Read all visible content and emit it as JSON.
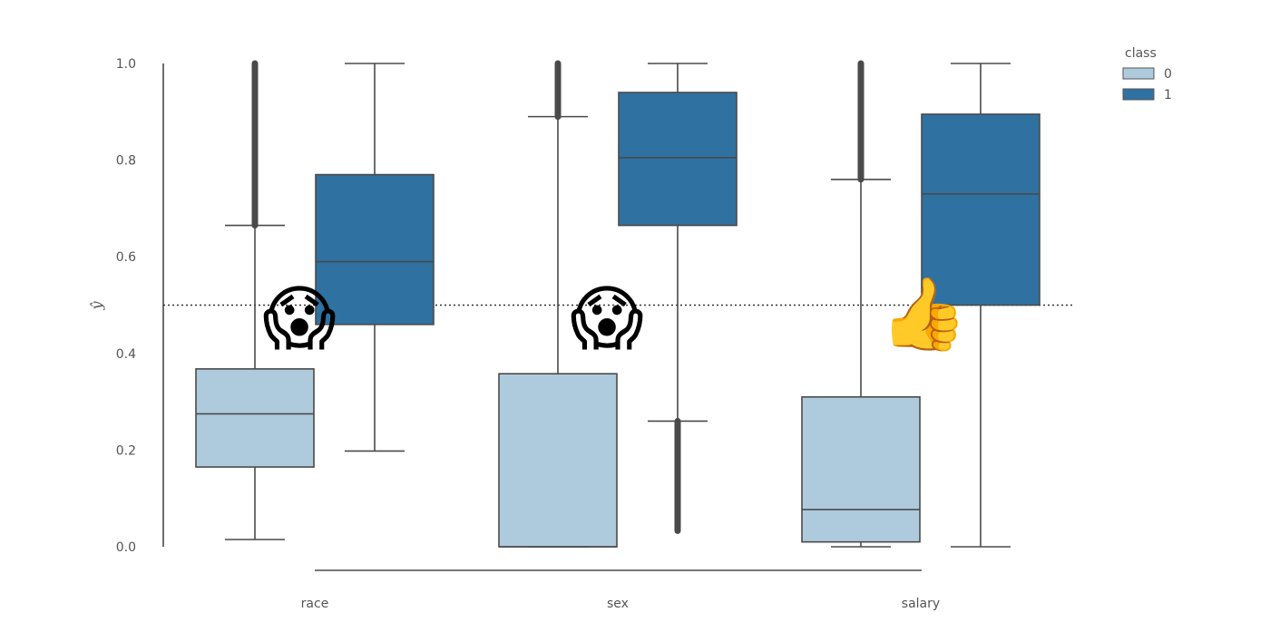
{
  "chart_data": {
    "type": "box",
    "categories": [
      "race",
      "sex",
      "salary"
    ],
    "ylabel": "ŷ",
    "ylim": [
      0,
      1
    ],
    "yticks": [
      0.0,
      0.2,
      0.4,
      0.6,
      0.8,
      1.0
    ],
    "ytick_labels": [
      "0.0",
      "0.2",
      "0.4",
      "0.6",
      "0.8",
      "1.0"
    ],
    "threshold": 0.5,
    "grid": false,
    "legend": {
      "title": "class",
      "placement": "top-right"
    },
    "series": [
      {
        "name": "0",
        "color": "#aecbdd",
        "boxes": [
          {
            "whisker_low": 0.015,
            "q1": 0.165,
            "median": 0.275,
            "q3": 0.368,
            "whisker_high": 0.665,
            "outlier_low": null,
            "outlier_high": 1.0
          },
          {
            "whisker_low": 0.0,
            "q1": 0.0,
            "median": 0.0,
            "q3": 0.358,
            "whisker_high": 0.89,
            "outlier_low": null,
            "outlier_high": 1.0
          },
          {
            "whisker_low": 0.0,
            "q1": 0.01,
            "median": 0.077,
            "q3": 0.31,
            "whisker_high": 0.76,
            "outlier_low": null,
            "outlier_high": 1.0
          }
        ]
      },
      {
        "name": "1",
        "color": "#2f71a1",
        "boxes": [
          {
            "whisker_low": 0.198,
            "q1": 0.46,
            "median": 0.59,
            "q3": 0.77,
            "whisker_high": 1.0,
            "outlier_low": null,
            "outlier_high": null
          },
          {
            "whisker_low": 0.26,
            "q1": 0.665,
            "median": 0.805,
            "q3": 0.94,
            "whisker_high": 1.0,
            "outlier_low": 0.033,
            "outlier_high": null
          },
          {
            "whisker_low": 0.0,
            "q1": 0.5,
            "median": 0.73,
            "q3": 0.895,
            "whisker_high": 1.0,
            "outlier_low": null,
            "outlier_high": null
          }
        ]
      }
    ]
  },
  "annotations": [
    {
      "name": "scream-emoji",
      "glyph": "😱",
      "category": "race"
    },
    {
      "name": "scream-emoji",
      "glyph": "😱",
      "category": "sex"
    },
    {
      "name": "thumbs-up-emoji",
      "glyph": "👍",
      "category": "salary"
    }
  ]
}
